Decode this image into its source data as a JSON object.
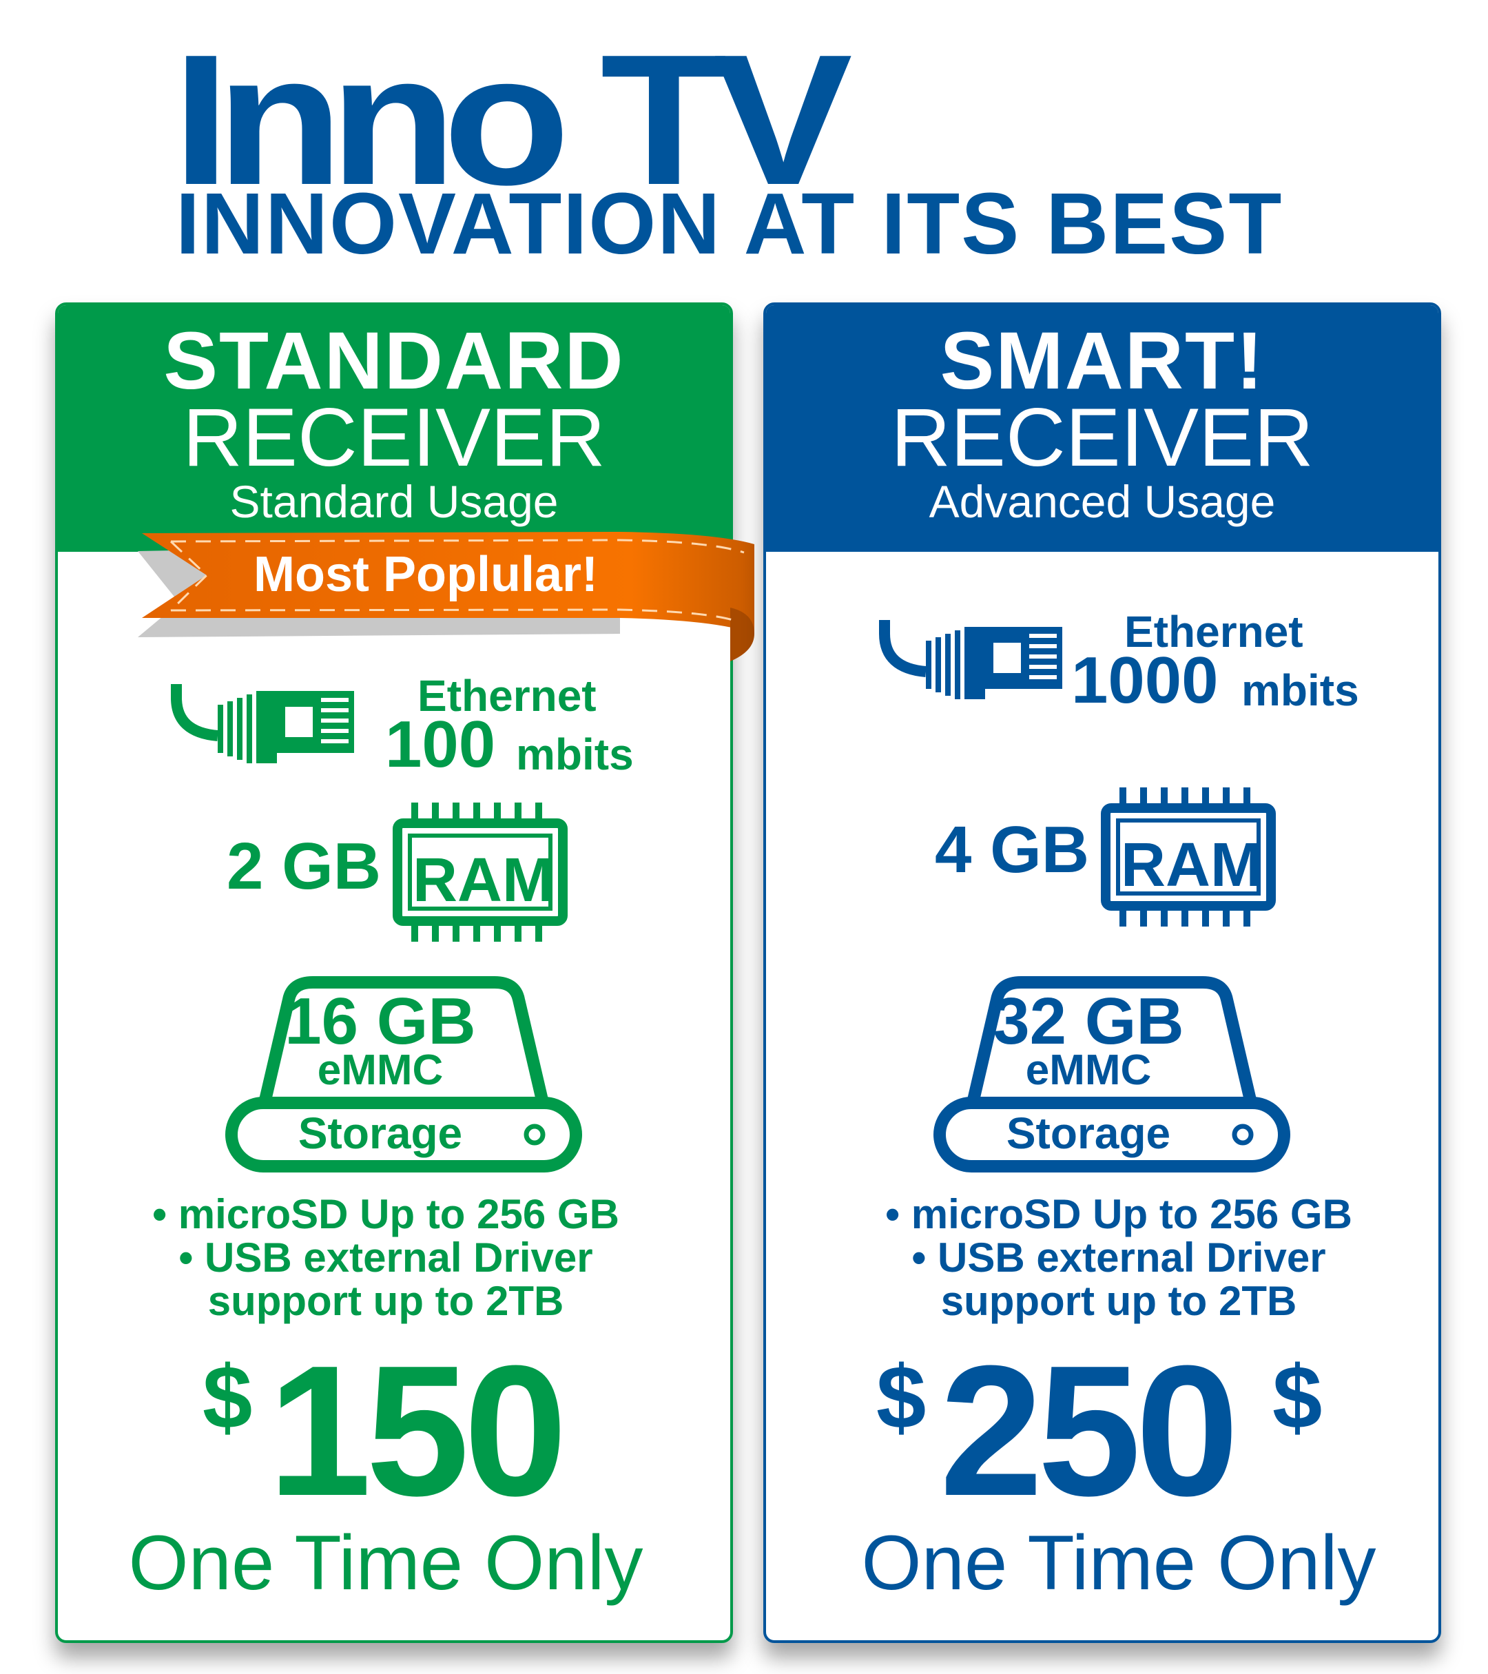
{
  "brand": {
    "logo": "Inno TV",
    "tagline": "INNOVATION AT ITS BEST",
    "primary_color": "#00549b",
    "secondary_color": "#009a4a",
    "accent_color": "#f77300"
  },
  "plans": [
    {
      "title": "STANDARD",
      "subtitle": "RECEIVER",
      "usage": "Standard Usage",
      "badge": "Most Poplular!",
      "ethernet_label": "Ethernet",
      "ethernet_speed": "100",
      "ethernet_unit": "mbits",
      "ram_amount": "2 GB",
      "ram_label": "RAM",
      "storage_amount": "16 GB",
      "storage_type": "eMMC",
      "storage_label": "Storage",
      "features": [
        "• microSD Up to 256 GB",
        "• USB external Driver",
        "support up to 2TB"
      ],
      "currency": "$",
      "price": "150",
      "price_note": "One Time Only",
      "color": "#009a4a"
    },
    {
      "title": "SMART!",
      "subtitle": "RECEIVER",
      "usage": "Advanced Usage",
      "ethernet_label": "Ethernet",
      "ethernet_speed": "1000",
      "ethernet_unit": "mbits",
      "ram_amount": "4 GB",
      "ram_label": "RAM",
      "storage_amount": "32 GB",
      "storage_type": "eMMC",
      "storage_label": "Storage",
      "features": [
        "• microSD Up to 256 GB",
        "• USB external Driver",
        "support up to 2TB"
      ],
      "currency": "$",
      "price": "250",
      "currency_suffix": "$",
      "price_note": "One Time Only",
      "color": "#00549b"
    }
  ]
}
